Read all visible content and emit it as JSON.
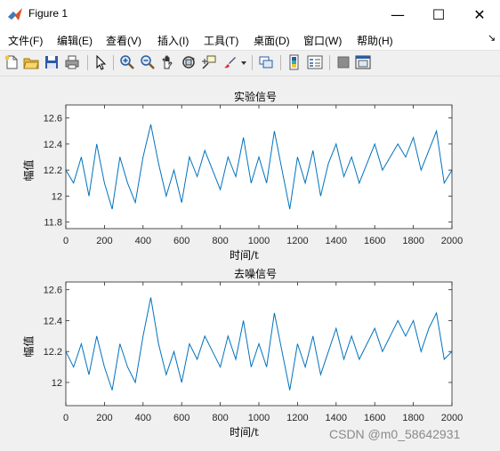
{
  "window": {
    "title": "Figure 1"
  },
  "controls": {
    "minimize": "—",
    "maximize": "☐",
    "close": "✕"
  },
  "menu": {
    "items": [
      "文件(F)",
      "编辑(E)",
      "查看(V)",
      "插入(I)",
      "工具(T)",
      "桌面(D)",
      "窗口(W)",
      "帮助(H)"
    ],
    "overflow": "↘"
  },
  "toolbar": {
    "icons": [
      "new-figure-icon",
      "open-file-icon",
      "save-icon",
      "print-icon",
      "pointer-icon",
      "zoom-in-icon",
      "zoom-out-icon",
      "pan-icon",
      "rotate-3d-icon",
      "data-cursor-icon",
      "brush-icon",
      "brush-dropdown-icon",
      "link-plot-icon",
      "colorbar-icon",
      "legend-icon",
      "hide-plot-tools-icon",
      "show-plot-tools-icon"
    ]
  },
  "colors": {
    "line": "#0072BD",
    "axes_bg": "#ffffff",
    "figure_bg": "#f0f0f0"
  },
  "chart_data": [
    {
      "type": "line",
      "title": "实验信号",
      "xlabel": "时间/t",
      "ylabel": "幅值",
      "xlim": [
        0,
        2000
      ],
      "ylim": [
        11.75,
        12.7
      ],
      "xticks": [
        0,
        200,
        400,
        600,
        800,
        1000,
        1200,
        1400,
        1600,
        1800,
        2000
      ],
      "yticks": [
        11.8,
        12,
        12.2,
        12.4,
        12.6
      ],
      "x": [
        0,
        40,
        80,
        120,
        160,
        200,
        240,
        280,
        320,
        360,
        400,
        440,
        480,
        520,
        560,
        600,
        640,
        680,
        720,
        760,
        800,
        840,
        880,
        920,
        960,
        1000,
        1040,
        1080,
        1120,
        1160,
        1200,
        1240,
        1280,
        1320,
        1360,
        1400,
        1440,
        1480,
        1520,
        1560,
        1600,
        1640,
        1680,
        1720,
        1760,
        1800,
        1840,
        1880,
        1920,
        1960,
        2000
      ],
      "series": [
        {
          "values": [
            12.2,
            12.1,
            12.3,
            12.0,
            12.4,
            12.1,
            11.9,
            12.3,
            12.1,
            11.95,
            12.3,
            12.55,
            12.25,
            12.0,
            12.2,
            11.95,
            12.3,
            12.15,
            12.35,
            12.2,
            12.05,
            12.3,
            12.15,
            12.45,
            12.1,
            12.3,
            12.1,
            12.5,
            12.2,
            11.9,
            12.3,
            12.1,
            12.35,
            12.0,
            12.25,
            12.4,
            12.15,
            12.3,
            12.1,
            12.25,
            12.4,
            12.2,
            12.3,
            12.4,
            12.3,
            12.45,
            12.2,
            12.35,
            12.5,
            12.1,
            12.2
          ]
        }
      ]
    },
    {
      "type": "line",
      "title": "去噪信号",
      "xlabel": "时间/t",
      "ylabel": "幅值",
      "xlim": [
        0,
        2000
      ],
      "ylim": [
        11.85,
        12.65
      ],
      "xticks": [
        0,
        200,
        400,
        600,
        800,
        1000,
        1200,
        1400,
        1600,
        1800,
        2000
      ],
      "yticks": [
        12,
        12.2,
        12.4,
        12.6
      ],
      "x": [
        0,
        40,
        80,
        120,
        160,
        200,
        240,
        280,
        320,
        360,
        400,
        440,
        480,
        520,
        560,
        600,
        640,
        680,
        720,
        760,
        800,
        840,
        880,
        920,
        960,
        1000,
        1040,
        1080,
        1120,
        1160,
        1200,
        1240,
        1280,
        1320,
        1360,
        1400,
        1440,
        1480,
        1520,
        1560,
        1600,
        1640,
        1680,
        1720,
        1760,
        1800,
        1840,
        1880,
        1920,
        1960,
        2000
      ],
      "series": [
        {
          "values": [
            12.2,
            12.1,
            12.25,
            12.05,
            12.3,
            12.1,
            11.95,
            12.25,
            12.1,
            12.0,
            12.3,
            12.55,
            12.25,
            12.05,
            12.2,
            12.0,
            12.25,
            12.15,
            12.3,
            12.2,
            12.1,
            12.3,
            12.15,
            12.4,
            12.1,
            12.25,
            12.1,
            12.45,
            12.2,
            11.95,
            12.25,
            12.1,
            12.3,
            12.05,
            12.2,
            12.35,
            12.15,
            12.3,
            12.15,
            12.25,
            12.35,
            12.2,
            12.3,
            12.4,
            12.3,
            12.4,
            12.2,
            12.35,
            12.45,
            12.15,
            12.2
          ]
        }
      ]
    }
  ],
  "watermark": "CSDN @m0_58642931"
}
